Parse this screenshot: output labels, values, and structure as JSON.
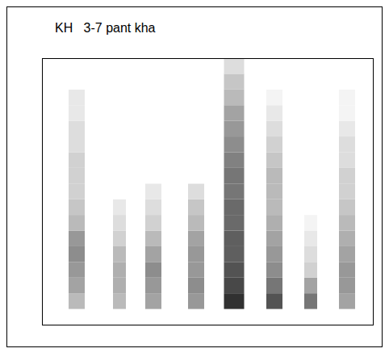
{
  "chart_data": {
    "type": "heatmap",
    "title": "KH   3-7 pant kha",
    "xlim": [
      0,
      41
    ],
    "ylim": [
      0,
      17
    ],
    "tick_labels": false,
    "intensity_range": [
      0,
      1
    ],
    "color": "#1a1a1a",
    "bursts": [
      {
        "x": 4.3,
        "width": 2,
        "values": [
          0.3,
          0.4,
          0.45,
          0.5,
          0.45,
          0.3,
          0.25,
          0.2,
          0.2,
          0.2,
          0.15,
          0.15,
          0.1,
          0.1,
          0,
          0
        ]
      },
      {
        "x": 9.6,
        "width": 1.6,
        "values": [
          0.3,
          0.35,
          0.35,
          0.3,
          0.2,
          0.15,
          0.1,
          0,
          0,
          0,
          0,
          0,
          0,
          0,
          0,
          0
        ]
      },
      {
        "x": 13.8,
        "width": 2,
        "values": [
          0.4,
          0.45,
          0.5,
          0.4,
          0.3,
          0.2,
          0.15,
          0.1,
          0,
          0,
          0,
          0,
          0,
          0,
          0,
          0
        ]
      },
      {
        "x": 19.1,
        "width": 2,
        "values": [
          0.45,
          0.5,
          0.45,
          0.45,
          0.4,
          0.3,
          0.25,
          0.15,
          0,
          0,
          0,
          0,
          0,
          0,
          0,
          0
        ]
      },
      {
        "x": 23.8,
        "width": 2.5,
        "values": [
          0.9,
          0.8,
          0.75,
          0.7,
          0.7,
          0.65,
          0.65,
          0.6,
          0.6,
          0.55,
          0.5,
          0.45,
          0.4,
          0.3,
          0.25,
          0.15
        ]
      },
      {
        "x": 28.8,
        "width": 2,
        "values": [
          0.75,
          0.6,
          0.5,
          0.45,
          0.4,
          0.35,
          0.3,
          0.3,
          0.3,
          0.25,
          0.2,
          0.15,
          0.1,
          0.05,
          0,
          0
        ]
      },
      {
        "x": 33.3,
        "width": 1.6,
        "values": [
          0.6,
          0.4,
          0.2,
          0.15,
          0.1,
          0.05,
          0,
          0,
          0,
          0,
          0,
          0,
          0,
          0,
          0,
          0
        ]
      },
      {
        "x": 37.8,
        "width": 2,
        "values": [
          0.4,
          0.45,
          0.45,
          0.4,
          0.35,
          0.3,
          0.25,
          0.2,
          0.2,
          0.15,
          0.15,
          0.1,
          0.05,
          0.05,
          0,
          0
        ]
      }
    ]
  }
}
